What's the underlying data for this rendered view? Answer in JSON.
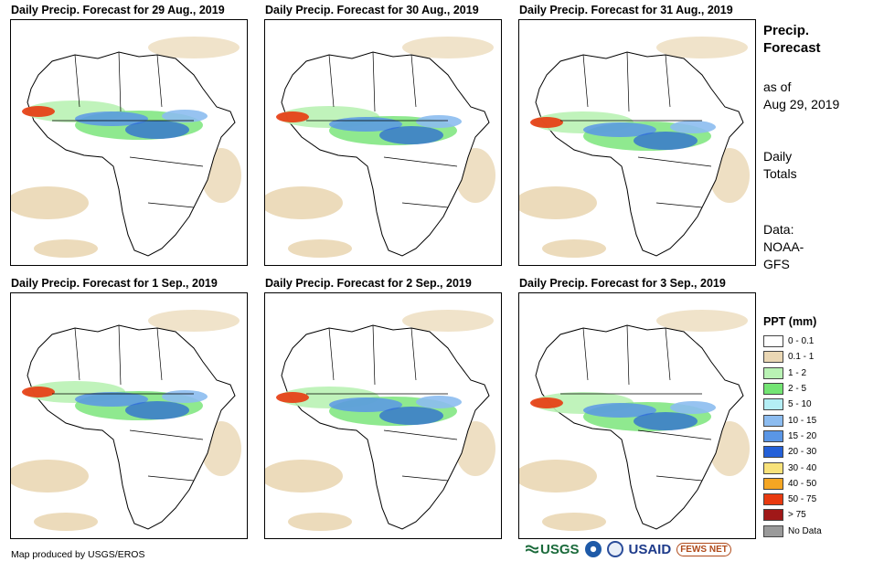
{
  "panels": [
    {
      "title": "Daily Precip. Forecast for 29 Aug., 2019"
    },
    {
      "title": "Daily Precip. Forecast for 30 Aug., 2019"
    },
    {
      "title": "Daily Precip. Forecast for 31 Aug., 2019"
    },
    {
      "title": "Daily Precip. Forecast for 1 Sep., 2019"
    },
    {
      "title": "Daily Precip. Forecast for 2 Sep., 2019"
    },
    {
      "title": "Daily Precip. Forecast for 3 Sep., 2019"
    }
  ],
  "side": {
    "title_line1": "Precip.",
    "title_line2": "Forecast",
    "asof_line1": "as of",
    "asof_line2": "Aug 29, 2019",
    "totals_line1": "Daily",
    "totals_line2": "Totals",
    "data_line1": "Data:",
    "data_line2": "NOAA-",
    "data_line3": "GFS"
  },
  "legend": {
    "title": "PPT (mm)",
    "items": [
      {
        "label": "0 - 0.1",
        "color": "#ffffff"
      },
      {
        "label": "0.1 - 1",
        "color": "#ead7b4"
      },
      {
        "label": "1 - 2",
        "color": "#b9f2b4"
      },
      {
        "label": "2 - 5",
        "color": "#73e473"
      },
      {
        "label": "5 - 10",
        "color": "#b4eef5"
      },
      {
        "label": "10 - 15",
        "color": "#8cbcf0"
      },
      {
        "label": "15 - 20",
        "color": "#5a96e6"
      },
      {
        "label": "20 - 30",
        "color": "#2460d8"
      },
      {
        "label": "30 - 40",
        "color": "#f8e27a"
      },
      {
        "label": "40 - 50",
        "color": "#f5a623"
      },
      {
        "label": "50 - 75",
        "color": "#e83a10"
      },
      {
        "label": "> 75",
        "color": "#a01818"
      },
      {
        "label": "No Data",
        "color": "#9a9a9a"
      }
    ]
  },
  "footer": {
    "credit": "Map produced by USGS/EROS"
  },
  "logos": {
    "usgs": "USGS",
    "usaid": "USAID",
    "fews": "FEWS NET"
  }
}
